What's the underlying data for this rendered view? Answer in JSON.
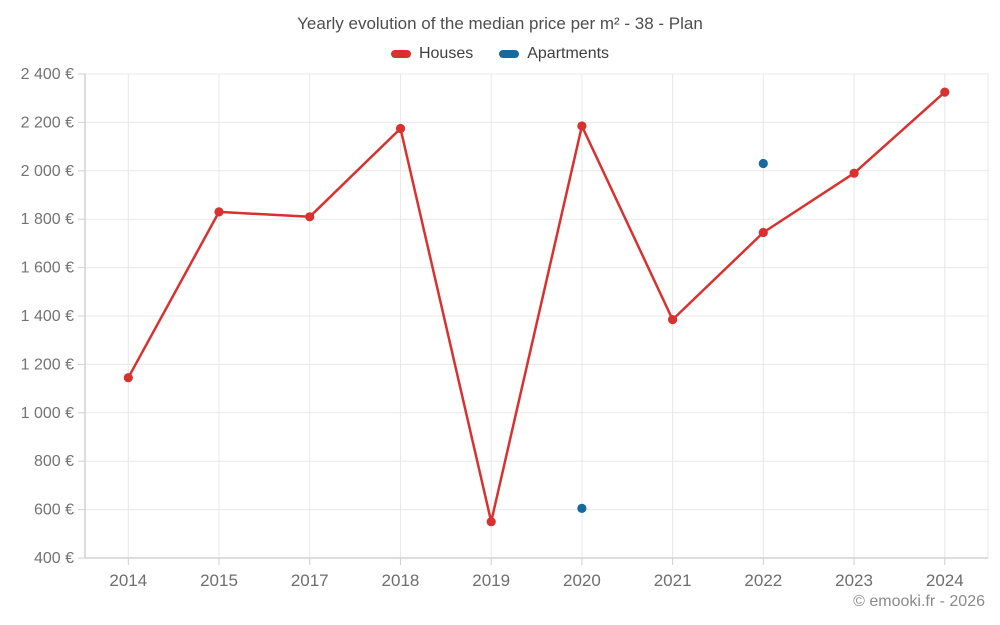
{
  "chart_data": {
    "type": "line",
    "title": "Yearly evolution of the median price per m² - 38 - Plan",
    "categories": [
      "2014",
      "2015",
      "2017",
      "2018",
      "2019",
      "2020",
      "2021",
      "2022",
      "2023",
      "2024"
    ],
    "series": [
      {
        "name": "Houses",
        "mode": "line+markers",
        "color": "#d8312f",
        "values": [
          1145,
          1830,
          1810,
          2175,
          550,
          2185,
          1385,
          1745,
          1990,
          2325
        ]
      },
      {
        "name": "Apartments",
        "mode": "markers",
        "color": "#17699f",
        "values": [
          null,
          null,
          null,
          null,
          null,
          605,
          null,
          2030,
          null,
          null
        ]
      }
    ],
    "ylim": [
      400,
      2400
    ],
    "ytick_step": 200,
    "ytick_suffix": " €",
    "grid": true,
    "legend_position": "top"
  },
  "footer": {
    "credit": "© emooki.fr - 2026"
  }
}
